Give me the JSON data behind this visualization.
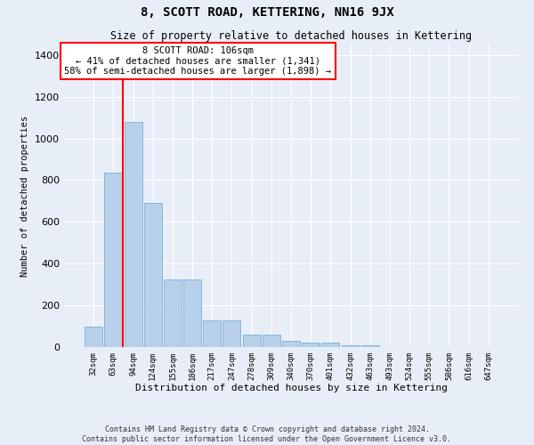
{
  "title": "8, SCOTT ROAD, KETTERING, NN16 9JX",
  "subtitle": "Size of property relative to detached houses in Kettering",
  "xlabel": "Distribution of detached houses by size in Kettering",
  "ylabel": "Number of detached properties",
  "bar_values": [
    100,
    835,
    1080,
    690,
    325,
    325,
    130,
    130,
    60,
    60,
    30,
    20,
    20,
    10,
    10,
    0,
    0,
    0,
    0,
    0,
    0
  ],
  "categories": [
    "32sqm",
    "63sqm",
    "94sqm",
    "124sqm",
    "155sqm",
    "186sqm",
    "217sqm",
    "247sqm",
    "278sqm",
    "309sqm",
    "340sqm",
    "370sqm",
    "401sqm",
    "432sqm",
    "463sqm",
    "493sqm",
    "524sqm",
    "555sqm",
    "586sqm",
    "616sqm",
    "647sqm"
  ],
  "bar_color": "#b8d0ea",
  "bar_edgecolor": "#7aafd4",
  "red_line_x": 1.5,
  "red_line_color": "red",
  "ylim": [
    0,
    1450
  ],
  "yticks": [
    0,
    200,
    400,
    600,
    800,
    1000,
    1200,
    1400
  ],
  "annotation_line1": "8 SCOTT ROAD: 106sqm",
  "annotation_line2": "← 41% of detached houses are smaller (1,341)",
  "annotation_line3": "58% of semi-detached houses are larger (1,898) →",
  "ann_box_edgecolor": "red",
  "footer_line1": "Contains HM Land Registry data © Crown copyright and database right 2024.",
  "footer_line2": "Contains public sector information licensed under the Open Government Licence v3.0.",
  "bg_color": "#e8eef8",
  "grid_color": "#ffffff",
  "title_fontsize": 10,
  "subtitle_fontsize": 8.5,
  "ylabel_fontsize": 7.5,
  "xlabel_fontsize": 8,
  "ytick_fontsize": 8,
  "xtick_fontsize": 6.5,
  "footer_fontsize": 6,
  "ann_fontsize": 7.5
}
